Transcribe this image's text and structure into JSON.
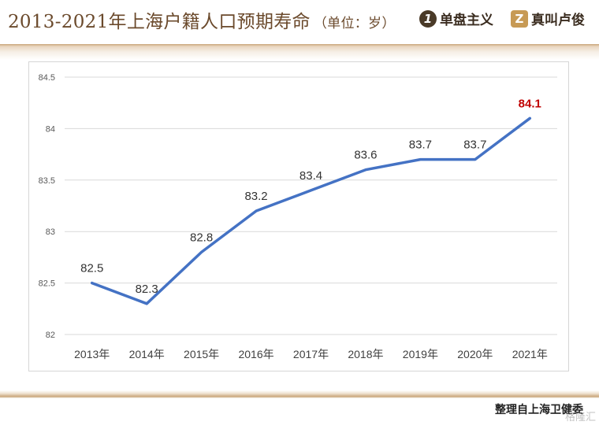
{
  "header": {
    "title": "2013-2021年上海户籍人口预期寿命",
    "title_unit": "（单位：岁）",
    "brand_1_badge": "1",
    "brand_1_text": "单盘主义",
    "brand_2_badge": "Z",
    "brand_2_text": "真叫卢俊"
  },
  "footer": {
    "source": "整理自上海卫健委",
    "watermark": "格隆汇"
  },
  "colors": {
    "line": "#4472c4",
    "highlight_label": "#c00000",
    "title": "#6b4a2c"
  },
  "chart_data": {
    "type": "line",
    "categories": [
      "2013年",
      "2014年",
      "2015年",
      "2016年",
      "2017年",
      "2018年",
      "2019年",
      "2020年",
      "2021年"
    ],
    "values": [
      82.5,
      82.3,
      82.8,
      83.2,
      83.4,
      83.6,
      83.7,
      83.7,
      84.1
    ],
    "data_labels": [
      "82.5",
      "82.3",
      "82.8",
      "83.2",
      "83.4",
      "83.6",
      "83.7",
      "83.7",
      "84.1"
    ],
    "highlight_index": 8,
    "y_ticks": [
      "84.5",
      "84",
      "83.5",
      "83",
      "82.5",
      "82"
    ],
    "y_tick_values": [
      84.5,
      84,
      83.5,
      83,
      82.5,
      82
    ],
    "ylim": [
      82,
      84.5
    ],
    "grid": true,
    "legend": "none",
    "title": "",
    "xlabel": "",
    "ylabel": ""
  }
}
